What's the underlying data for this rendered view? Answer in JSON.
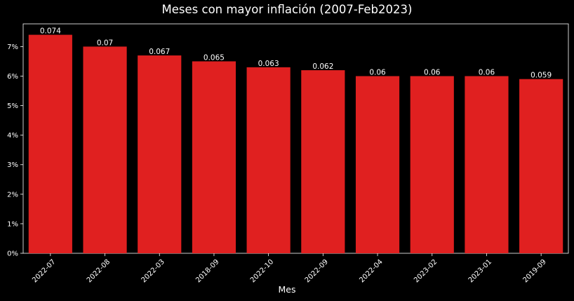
{
  "chart_data": {
    "type": "bar",
    "title": "Meses con mayor inflación (2007-Feb2023)",
    "xlabel": "Mes",
    "ylabel": "",
    "categories": [
      "2022-07",
      "2022-08",
      "2022-03",
      "2018-09",
      "2022-10",
      "2022-09",
      "2022-04",
      "2023-02",
      "2023-01",
      "2019-09"
    ],
    "values": [
      0.074,
      0.07,
      0.067,
      0.065,
      0.063,
      0.062,
      0.06,
      0.06,
      0.06,
      0.059
    ],
    "data_labels": [
      "0.074",
      "0.07",
      "0.067",
      "0.065",
      "0.063",
      "0.062",
      "0.06",
      "0.06",
      "0.06",
      "0.059"
    ],
    "ylim": [
      0,
      0.0777
    ],
    "yticks": [
      0,
      0.01,
      0.02,
      0.03,
      0.04,
      0.05,
      0.06,
      0.07
    ],
    "ytick_labels": [
      "0%",
      "1%",
      "2%",
      "3%",
      "4%",
      "5%",
      "6%",
      "7%"
    ],
    "grid": false,
    "legend": "none",
    "colors": {
      "background": "#000000",
      "bar": "#e02020",
      "axis": "#ffffff",
      "text": "#ffffff"
    }
  }
}
